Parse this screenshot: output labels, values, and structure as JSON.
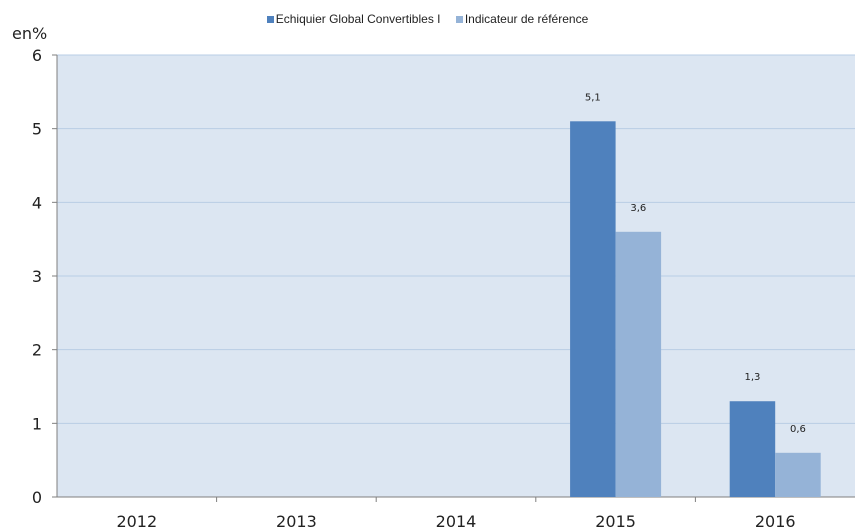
{
  "chart_data": {
    "type": "bar",
    "categories": [
      "2012",
      "2013",
      "2014",
      "2015",
      "2016"
    ],
    "series": [
      {
        "name": "Echiquier Global Convertibles I",
        "values": [
          null,
          null,
          null,
          5.1,
          1.3
        ],
        "labels": [
          "",
          "",
          "",
          "5,1",
          "1,3"
        ],
        "color": "#4f81bd"
      },
      {
        "name": "Indicateur de référence",
        "values": [
          null,
          null,
          null,
          3.6,
          0.6
        ],
        "labels": [
          "",
          "",
          "",
          "3,6",
          "0,6"
        ],
        "color": "#95b3d7"
      }
    ],
    "ylabel": "en%",
    "ylim": [
      0,
      6
    ],
    "yticks": [
      "0",
      "1",
      "2",
      "3",
      "4",
      "5",
      "6"
    ],
    "grid": true,
    "plot_background": "#dce6f2",
    "legend_position": "top"
  }
}
